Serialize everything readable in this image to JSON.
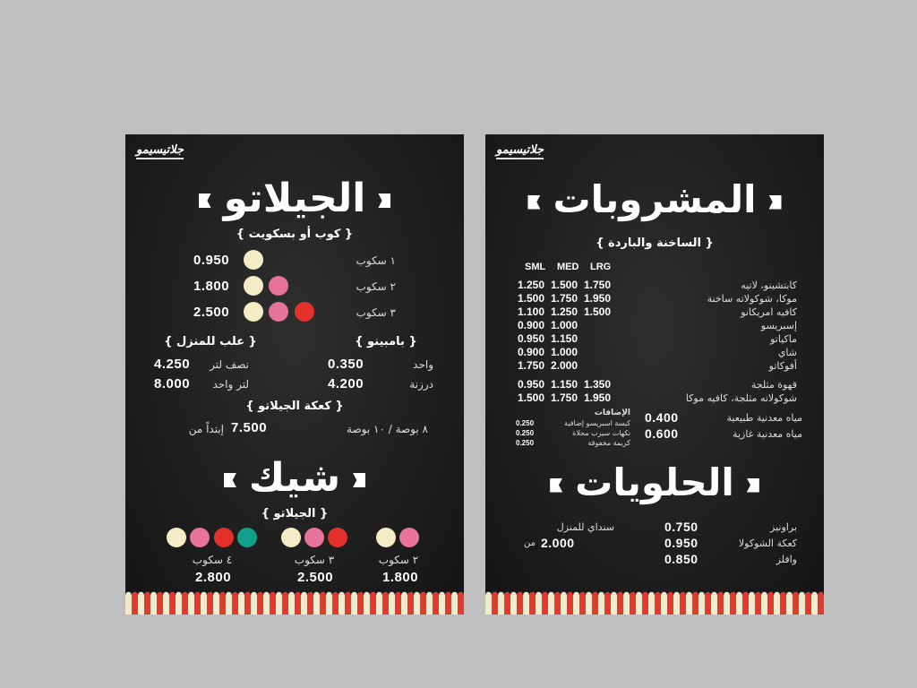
{
  "brand": "جلاتيسيمو",
  "colors": {
    "cream": "#f3ecc4",
    "pink": "#e8739a",
    "red": "#e3302a",
    "teal": "#12a08a",
    "board": "#1e1e1e",
    "stripe_red": "#e23a2c"
  },
  "gelato": {
    "title": "الجيلاتو",
    "subtitle": "{ كوب أو بسكويت }",
    "rows": [
      {
        "label": "١ سكوب",
        "price": "0.950",
        "scoops": 1
      },
      {
        "label": "٢ سكوب",
        "price": "1.800",
        "scoops": 2
      },
      {
        "label": "٣ سكوب",
        "price": "2.500",
        "scoops": 3
      }
    ]
  },
  "bambino": {
    "title": "{ بامبينو }",
    "rows": [
      {
        "label": "واحد",
        "price": "0.350"
      },
      {
        "label": "درزنة",
        "price": "4.200"
      }
    ]
  },
  "home": {
    "title": "{ علب للمنزل }",
    "rows": [
      {
        "label": "نصف لتر",
        "price": "4.250"
      },
      {
        "label": "لتر واحد",
        "price": "8.000"
      }
    ]
  },
  "cake": {
    "title": "{ كعكة الجيلاتو }",
    "label": "٨ بوصة / ١٠ بوصة",
    "price": "7.500",
    "from": "إبتداً من"
  },
  "shake": {
    "title": "شيك",
    "subtitle": "{ الجيلاتو }",
    "items": [
      {
        "label": "٤ سكوب",
        "price": "2.800",
        "scoops": 4
      },
      {
        "label": "٣ سكوب",
        "price": "2.500",
        "scoops": 3
      },
      {
        "label": "٢ سكوب",
        "price": "1.800",
        "scoops": 2
      }
    ]
  },
  "drinks": {
    "title": "المشروبات",
    "subtitle": "{ الساخنة والباردة }",
    "headers": [
      "SML",
      "MED",
      "LRG"
    ],
    "rows": [
      {
        "name": "كابتشينو، لاتيه",
        "prices": [
          "1.250",
          "1.500",
          "1.750"
        ]
      },
      {
        "name": "موكا، شوكولاته ساخنة",
        "prices": [
          "1.500",
          "1.750",
          "1.950"
        ]
      },
      {
        "name": "كافيه امريكانو",
        "prices": [
          "1.100",
          "1.250",
          "1.500"
        ]
      },
      {
        "name": "إسبريسو",
        "prices": [
          "0.900",
          "1.000",
          ""
        ]
      },
      {
        "name": "ماكياتو",
        "prices": [
          "0.950",
          "1.150",
          ""
        ]
      },
      {
        "name": "شاي",
        "prices": [
          "0.900",
          "1.000",
          ""
        ]
      },
      {
        "name": "أفوكاتو",
        "prices": [
          "1.750",
          "2.000",
          ""
        ]
      },
      {
        "name": "قهوة مثلجة",
        "prices": [
          "0.950",
          "1.150",
          "1.350"
        ]
      },
      {
        "name": "شوكولاته مثلجة، كافيه موكا",
        "prices": [
          "1.500",
          "1.750",
          "1.950"
        ]
      }
    ],
    "water": [
      {
        "name": "مياه معدنية طبيعية",
        "price": "0.400"
      },
      {
        "name": "مياه معدنية غازية",
        "price": "0.600"
      }
    ],
    "extras_title": "الإضافات",
    "extras": [
      {
        "name": "كبسة اسبريسو إضافية",
        "price": "0.250"
      },
      {
        "name": "نكهات سيرب محلاة",
        "price": "0.250"
      },
      {
        "name": "كريمة مخفوقة",
        "price": "0.250"
      }
    ]
  },
  "desserts": {
    "title": "الحلويات",
    "items": [
      {
        "name": "براونيز",
        "price": "0.750"
      },
      {
        "name": "كعكة الشوكولا",
        "price": "0.950"
      },
      {
        "name": "وافلز",
        "price": "0.850"
      }
    ],
    "sundae": {
      "name": "سنداي للمنزل",
      "price": "2.000",
      "from": "من"
    }
  }
}
